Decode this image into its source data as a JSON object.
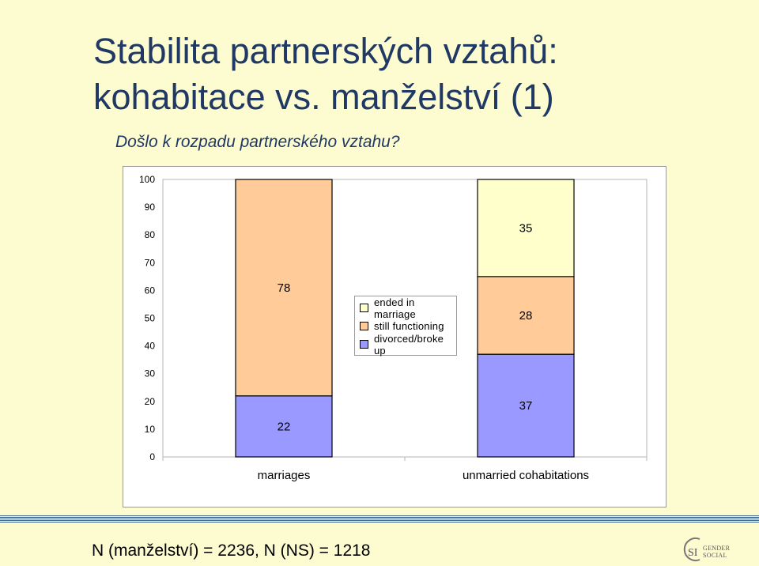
{
  "slide": {
    "title_line1": "Stabilita partnerských vztahů:",
    "title_line2": "kohabitace vs. manželství (1)",
    "subtitle": "Došlo k rozpadu partnerského vztahu?",
    "footer": "N (manželství) = 2236, N (NS) = 1218",
    "logo_text_1": "GENDER",
    "logo_text_2": "SOCIAL",
    "logo_mark": "SI"
  },
  "chart_data": {
    "type": "bar",
    "stacked": true,
    "categories": [
      "marriages",
      "unmarried cohabitations"
    ],
    "ylim": [
      0,
      100
    ],
    "yticks": [
      0,
      10,
      20,
      30,
      40,
      50,
      60,
      70,
      80,
      90,
      100
    ],
    "series": [
      {
        "name": "divorced/broke up",
        "color": "#9999ff",
        "values": [
          22,
          37
        ]
      },
      {
        "name": "still functioning",
        "color": "#ffcc99",
        "values": [
          78,
          28
        ]
      },
      {
        "name": "ended in marriage",
        "color": "#ffffcc",
        "values": [
          null,
          35
        ]
      }
    ],
    "data_labels": [
      [
        "22",
        "78",
        ""
      ],
      [
        "37",
        "28",
        "35"
      ]
    ],
    "legend_order": [
      "ended in marriage",
      "still functioning",
      "divorced/broke up"
    ],
    "legend_position": "center"
  }
}
